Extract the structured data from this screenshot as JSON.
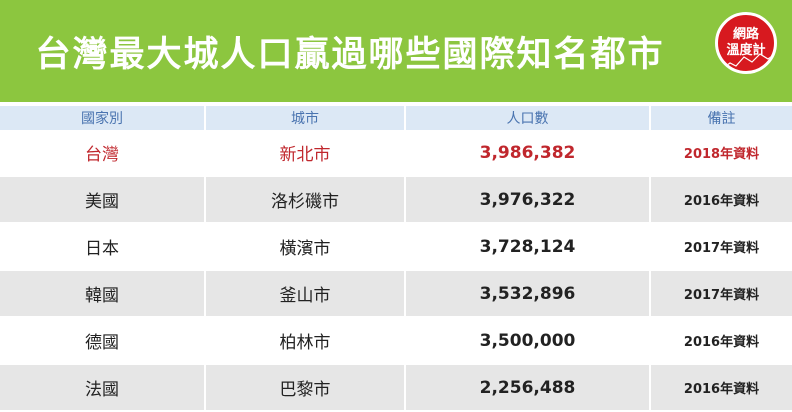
{
  "title": "台灣最大城人口贏過哪些國際知名都市",
  "logo": {
    "line1": "網路",
    "line2": "溫度計"
  },
  "colors": {
    "banner": "#8cc63f",
    "header_bg": "#dce8f5",
    "header_text": "#4a74b0",
    "highlight": "#c0272d",
    "stripe": "#e6e6e6"
  },
  "chart_data": {
    "type": "table",
    "columns": [
      "國家別",
      "城市",
      "人口數",
      "備註"
    ],
    "rows": [
      [
        "台灣",
        "新北市",
        "3,986,382",
        "2018年資料"
      ],
      [
        "美國",
        "洛杉磯市",
        "3,976,322",
        "2016年資料"
      ],
      [
        "日本",
        "橫濱市",
        "3,728,124",
        "2017年資料"
      ],
      [
        "韓國",
        "釜山市",
        "3,532,896",
        "2017年資料"
      ],
      [
        "德國",
        "柏林市",
        "3,500,000",
        "2016年資料"
      ],
      [
        "法國",
        "巴黎市",
        "2,256,488",
        "2016年資料"
      ]
    ],
    "values": [
      3986382,
      3976322,
      3728124,
      3532896,
      3500000,
      2256488
    ],
    "highlight_row": 0
  }
}
